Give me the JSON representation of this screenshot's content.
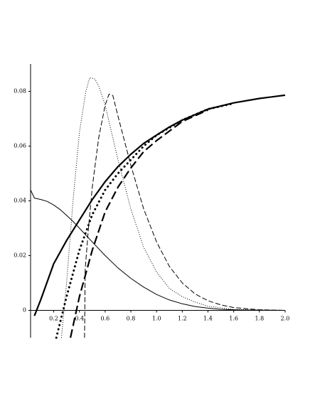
{
  "chart_data": {
    "type": "line",
    "xlim": [
      0.02,
      2.0
    ],
    "ylim": [
      -0.01,
      0.09
    ],
    "xticks": [
      0.2,
      0.4,
      0.6,
      0.8,
      {
        "value": 1,
        "label": "1.0"
      },
      1.2,
      1.4,
      1.6,
      1.8,
      {
        "value": 2,
        "label": "2.0"
      }
    ],
    "yticks": [
      0,
      0.02,
      0.04,
      0.06,
      0.08
    ],
    "series": [
      {
        "color": "#000000",
        "dash": "solid",
        "width": 1,
        "x": [
          0.02,
          0.05,
          0.1,
          0.15,
          0.2,
          0.25,
          0.3,
          0.35,
          0.4,
          0.5,
          0.6,
          0.7,
          0.8,
          0.9,
          1.0,
          1.1,
          1.2,
          1.3,
          1.4,
          1.5,
          1.6,
          1.8,
          2.0
        ],
        "values": [
          0.044,
          0.041,
          0.0405,
          0.0398,
          0.0385,
          0.0368,
          0.0347,
          0.0325,
          0.03,
          0.025,
          0.02,
          0.0155,
          0.0117,
          0.0085,
          0.0058,
          0.0038,
          0.0024,
          0.0014,
          0.0008,
          0.0004,
          0.0002,
          5e-05,
          0
        ]
      },
      {
        "color": "#000000",
        "dash": "solid",
        "width": 2.2,
        "x": [
          0.05,
          0.1,
          0.2,
          0.3,
          0.4,
          0.5,
          0.6,
          0.7,
          0.8,
          0.9,
          1.0,
          1.1,
          1.2,
          1.4,
          1.6,
          1.8,
          2.0
        ],
        "values": [
          -0.002,
          0.004,
          0.017,
          0.0255,
          0.033,
          0.0405,
          0.047,
          0.0525,
          0.057,
          0.061,
          0.064,
          0.067,
          0.0695,
          0.0735,
          0.0758,
          0.0774,
          0.0786
        ]
      },
      {
        "color": "#000000",
        "dash": "dot",
        "width": 1,
        "x": [
          0.26,
          0.3,
          0.35,
          0.4,
          0.45,
          0.48,
          0.52,
          0.55,
          0.6,
          0.7,
          0.8,
          0.9,
          1.0,
          1.1,
          1.2,
          1.3,
          1.4,
          1.6,
          1.8,
          2.0
        ],
        "values": [
          -0.01,
          0.01,
          0.04,
          0.065,
          0.08,
          0.085,
          0.0845,
          0.082,
          0.075,
          0.055,
          0.037,
          0.023,
          0.014,
          0.008,
          0.005,
          0.003,
          0.0015,
          0.0003,
          0.0001,
          0
        ]
      },
      {
        "color": "#000000",
        "dash": "dash",
        "width": 1,
        "x": [
          0.44,
          0.445,
          0.47,
          0.5,
          0.55,
          0.6,
          0.63,
          0.66,
          0.7,
          0.8,
          0.9,
          1.0,
          1.1,
          1.2,
          1.3,
          1.4,
          1.5,
          1.6,
          1.8,
          2.0
        ],
        "values": [
          -0.01,
          0.015,
          0.03,
          0.045,
          0.063,
          0.075,
          0.079,
          0.0785,
          0.071,
          0.053,
          0.037,
          0.025,
          0.016,
          0.01,
          0.006,
          0.0035,
          0.002,
          0.001,
          0.0002,
          0
        ]
      },
      {
        "color": "#000000",
        "dash": "thickdot",
        "width": 3,
        "x": [
          0.22,
          0.3,
          0.4,
          0.5,
          0.6,
          0.7,
          0.8,
          0.9,
          1.0,
          1.2,
          1.4,
          1.6
        ],
        "values": [
          -0.01,
          0.005,
          0.022,
          0.035,
          0.044,
          0.05,
          0.055,
          0.06,
          0.064,
          0.0695,
          0.0735,
          0.0756
        ]
      },
      {
        "color": "#000000",
        "dash": "thickdash",
        "width": 2.2,
        "x": [
          0.33,
          0.4,
          0.5,
          0.6,
          0.7,
          0.8,
          0.9,
          1.0,
          1.2,
          1.4
        ],
        "values": [
          -0.01,
          0.005,
          0.022,
          0.036,
          0.045,
          0.052,
          0.058,
          0.062,
          0.069,
          0.0732
        ]
      }
    ]
  }
}
